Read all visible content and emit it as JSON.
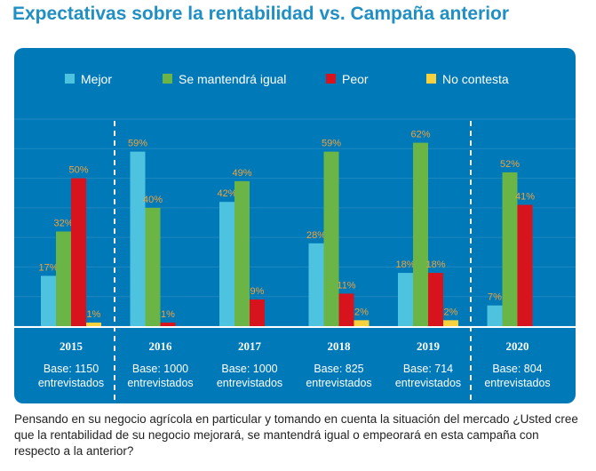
{
  "title": "Expectativas sobre la rentabilidad vs. Campaña anterior",
  "caption": "Pensando en su negocio agrícola en particular y tomando en cuenta la situación del mercado ¿Usted cree que la rentabilidad de su negocio mejorará, se mantendrá igual o empeorará en esta campaña con respecto a la anterior?",
  "colors": {
    "panel_bg": "#0079b8",
    "mejor": "#4ec3e0",
    "igual": "#6ab545",
    "peor": "#d7141e",
    "no_contesta": "#f7d23e",
    "value_label": "#f2a33a"
  },
  "chart_data": {
    "type": "bar",
    "title": "Expectativas sobre la rentabilidad vs. Campaña anterior",
    "legend_position": "top",
    "grid": true,
    "ylim": [
      0,
      70
    ],
    "categories": [
      "2015",
      "2016",
      "2017",
      "2018",
      "2019",
      "2020"
    ],
    "bases": [
      "Base: 1150 entrevistados",
      "Base: 1000 entrevistados",
      "Base: 1000 entrevistados",
      "Base: 825 entrevistados",
      "Base: 714 entrevistados",
      "Base: 804 entrevistados"
    ],
    "series": [
      {
        "name": "Mejor",
        "color": "#4ec3e0",
        "values": [
          17,
          59,
          42,
          28,
          18,
          7
        ]
      },
      {
        "name": "Se mantendrá igual",
        "color": "#6ab545",
        "values": [
          32,
          40,
          49,
          59,
          62,
          52
        ]
      },
      {
        "name": "Peor",
        "color": "#d7141e",
        "values": [
          50,
          1,
          9,
          11,
          18,
          41
        ]
      },
      {
        "name": "No contesta",
        "color": "#f7d23e",
        "values": [
          1,
          null,
          null,
          2,
          2,
          null
        ]
      }
    ]
  }
}
